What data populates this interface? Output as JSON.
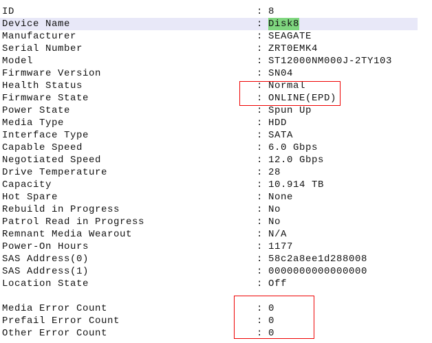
{
  "rows": [
    {
      "label": "ID",
      "value": "8"
    },
    {
      "label": "Device Name",
      "value": "Disk8"
    },
    {
      "label": "Manufacturer",
      "value": "SEAGATE"
    },
    {
      "label": "Serial Number",
      "value": "ZRT0EMK4"
    },
    {
      "label": "Model",
      "value": "ST12000NM000J-2TY103"
    },
    {
      "label": "Firmware Version",
      "value": "SN04"
    },
    {
      "label": "Health Status",
      "value": "Normal"
    },
    {
      "label": "Firmware State",
      "value": "ONLINE(EPD)"
    },
    {
      "label": "Power State",
      "value": "Spun Up"
    },
    {
      "label": "Media Type",
      "value": "HDD"
    },
    {
      "label": "Interface Type",
      "value": "SATA"
    },
    {
      "label": "Capable Speed",
      "value": "6.0 Gbps"
    },
    {
      "label": "Negotiated Speed",
      "value": "12.0 Gbps"
    },
    {
      "label": "Drive Temperature",
      "value": "28"
    },
    {
      "label": "Capacity",
      "value": "10.914 TB"
    },
    {
      "label": "Hot Spare",
      "value": "None"
    },
    {
      "label": "Rebuild in Progress",
      "value": "No"
    },
    {
      "label": "Patrol Read in Progress",
      "value": "No"
    },
    {
      "label": "Remnant Media Wearout",
      "value": "N/A"
    },
    {
      "label": "Power-On Hours",
      "value": "1177"
    },
    {
      "label": "SAS Address(0)",
      "value": "58c2a8ee1d288008"
    },
    {
      "label": "SAS Address(1)",
      "value": "0000000000000000"
    },
    {
      "label": "Location State",
      "value": "Off"
    },
    {
      "label": "",
      "value": ""
    },
    {
      "label": "Media Error Count",
      "value": "0"
    },
    {
      "label": "Prefail Error Count",
      "value": "0"
    },
    {
      "label": "Other Error Count",
      "value": "0"
    }
  ],
  "separator": ":",
  "selected_row": 1,
  "colors": {
    "selection": "#e8e8f8",
    "highlight": "#7fd67f",
    "annotation_box": "#ee0000"
  }
}
